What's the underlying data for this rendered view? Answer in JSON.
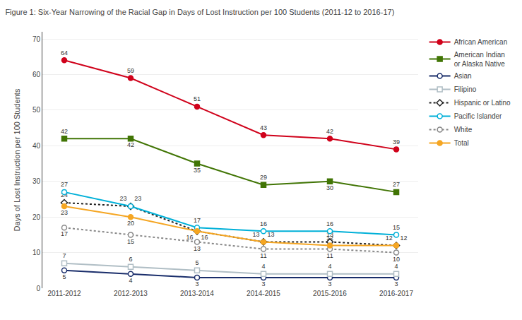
{
  "chart_data": {
    "type": "line",
    "title": "Figure 1: Six-Year Narrowing of the Racial Gap in Days of Lost Instruction per 100 Students (2011-12 to 2016-17)",
    "ylabel": "Days of Lost Instruction per 100 Students",
    "categories": [
      "2011-2012",
      "2012-2013",
      "2013-2014",
      "2014-2015",
      "2015-2016",
      "2016-2017"
    ],
    "series": [
      {
        "name": "African American",
        "color": "#d0021b",
        "marker": "circle",
        "line_style": "solid",
        "values": [
          64,
          59,
          51,
          43,
          42,
          39
        ]
      },
      {
        "name": "American Indian\nor Alaska Native",
        "color": "#417505",
        "marker": "square",
        "line_style": "solid",
        "values": [
          42,
          42,
          35,
          29,
          30,
          27
        ]
      },
      {
        "name": "Asian",
        "color": "#1a2e6b",
        "marker": "circle-open",
        "line_style": "solid",
        "values": [
          5,
          4,
          3,
          3,
          3,
          3
        ]
      },
      {
        "name": "Filipino",
        "color": "#b0bec5",
        "marker": "square-open",
        "line_style": "solid",
        "values": [
          7,
          6,
          5,
          4,
          4,
          4
        ]
      },
      {
        "name": "Hispanic or Latino",
        "color": "#212121",
        "marker": "diamond-open",
        "line_style": "dotted",
        "values": [
          24,
          23,
          16,
          13,
          13,
          12
        ]
      },
      {
        "name": "Pacific Islander",
        "color": "#00b0d8",
        "marker": "circle-open",
        "line_style": "solid",
        "values": [
          27,
          23,
          17,
          16,
          16,
          15
        ]
      },
      {
        "name": "White",
        "color": "#888888",
        "marker": "circle-open",
        "line_style": "dotted",
        "values": [
          17,
          15,
          13,
          11,
          11,
          10
        ]
      },
      {
        "name": "Total",
        "color": "#f5a623",
        "marker": "circle",
        "line_style": "solid",
        "values": [
          23,
          20,
          16,
          13,
          12,
          12
        ]
      }
    ],
    "ylim": [
      0,
      72
    ],
    "yticks": [
      0,
      10,
      20,
      30,
      40,
      50,
      60,
      70
    ],
    "grid": true,
    "legend": "right",
    "data_labels": true
  }
}
